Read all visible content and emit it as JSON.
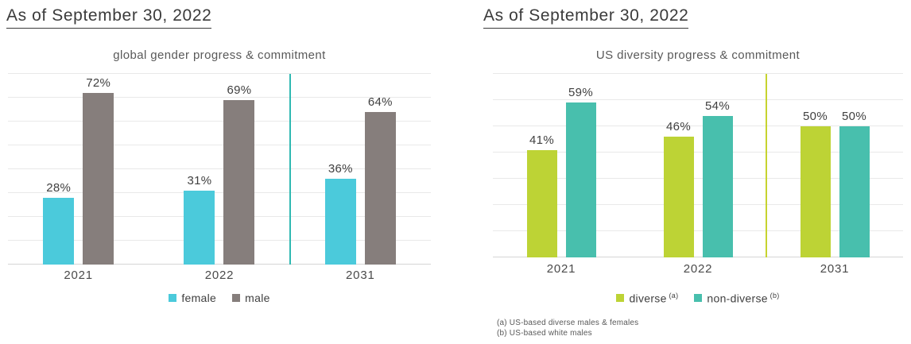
{
  "colors": {
    "gridline": "#e9e9e9",
    "axis_line": "#d5d5d5",
    "header_text": "#3b3b3b",
    "title_text": "#595959",
    "label_text": "#404040"
  },
  "chart_data": [
    {
      "type": "bar",
      "header": "As of September 30, 2022",
      "title": "global gender progress & commitment",
      "categories": [
        "2021",
        "2022",
        "2031"
      ],
      "series": [
        {
          "name": "female",
          "sup": "",
          "color": "#4bcadb",
          "values": [
            28,
            31,
            36
          ]
        },
        {
          "name": "male",
          "sup": "",
          "color": "#867e7c",
          "values": [
            72,
            69,
            64
          ]
        }
      ],
      "data_label_suffix": "%",
      "ylim": [
        0,
        80
      ],
      "grid_step": 10,
      "grid": "horizontal only, no y tick labels",
      "legend_position": "bottom",
      "divider": {
        "after_category_index": 2,
        "color": "#2fb9b2"
      },
      "footnotes": []
    },
    {
      "type": "bar",
      "header": "As of September 30, 2022",
      "title": "US diversity progress & commitment",
      "categories": [
        "2021",
        "2022",
        "2031"
      ],
      "series": [
        {
          "name": "diverse",
          "sup": "(a)",
          "color": "#bdd335",
          "values": [
            41,
            46,
            50
          ]
        },
        {
          "name": "non-diverse",
          "sup": "(b)",
          "color": "#48bfad",
          "values": [
            59,
            54,
            50
          ]
        }
      ],
      "data_label_suffix": "%",
      "ylim": [
        0,
        70
      ],
      "grid_step": 10,
      "grid": "horizontal only, no y tick labels",
      "legend_position": "bottom",
      "divider": {
        "after_category_index": 2,
        "color": "#c6d32f"
      },
      "footnotes": [
        "(a) US-based diverse males & females",
        "(b) US-based white males"
      ]
    }
  ]
}
